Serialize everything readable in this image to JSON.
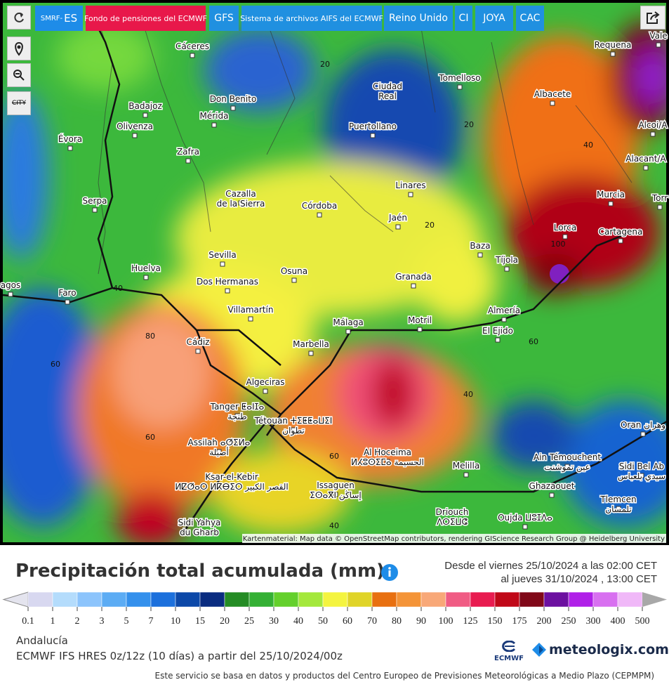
{
  "toolbar": {
    "buttons": [
      {
        "small": "SMRF-",
        "label": "ES"
      },
      {
        "label": "Fondo de pensiones del ECMWF"
      },
      {
        "label": "GFS"
      },
      {
        "label": "Sistema de archivos AIFS del ECMWF"
      },
      {
        "label": "Reino Unido"
      },
      {
        "label": "CI"
      },
      {
        "label": "JOYA"
      },
      {
        "label": "CAC"
      }
    ],
    "city_toggle": "CITY"
  },
  "map": {
    "cities": [
      {
        "name": "Cáceres"
      },
      {
        "name": "Badajoz"
      },
      {
        "name": "Mérida"
      },
      {
        "name": "Don Benito"
      },
      {
        "name": "Olivenza"
      },
      {
        "name": "Évora"
      },
      {
        "name": "Zafra"
      },
      {
        "name": "Ciudad",
        "alt": "Real"
      },
      {
        "name": "Tomelloso"
      },
      {
        "name": "Puertollano"
      },
      {
        "name": "Albacete"
      },
      {
        "name": "Requena"
      },
      {
        "name": "Vale"
      },
      {
        "name": "Alcoi/A"
      },
      {
        "name": "Alacant/A"
      },
      {
        "name": "Murcia"
      },
      {
        "name": "Torr"
      },
      {
        "name": "Cartagena"
      },
      {
        "name": "Lorca"
      },
      {
        "name": "Linares"
      },
      {
        "name": "Jaén"
      },
      {
        "name": "Córdoba"
      },
      {
        "name": "Cazalla",
        "alt": "de la Sierra"
      },
      {
        "name": "Serpa"
      },
      {
        "name": "Huelva"
      },
      {
        "name": "Sevilla"
      },
      {
        "name": "Dos Hermanas"
      },
      {
        "name": "Osuna"
      },
      {
        "name": "Granada"
      },
      {
        "name": "Baza"
      },
      {
        "name": "Tíjola"
      },
      {
        "name": "Almería"
      },
      {
        "name": "El Ejido"
      },
      {
        "name": "Motril"
      },
      {
        "name": "Málaga"
      },
      {
        "name": "Marbella"
      },
      {
        "name": "Villamartín"
      },
      {
        "name": "Faro"
      },
      {
        "name": "agos"
      },
      {
        "name": "Cádiz"
      },
      {
        "name": "Algeciras"
      },
      {
        "name": "Tanger ⵟⴰⵏⵊⴰ",
        "alt": "طنجة"
      },
      {
        "name": "Tétouan ⵜⵉⵟⵟⴰⵡⵉⵏ",
        "alt": "تطوان"
      },
      {
        "name": "Assilah ⴰⵚⵉⵍⴰ",
        "alt": "أصيلة"
      },
      {
        "name": "Al Hoceima",
        "alt": "ⵍⵃⵓⵙⵉⵎⴰ الحسيمة"
      },
      {
        "name": "Ksar-el-Kebir",
        "alt": "ⵍⵇⵚⴰⵔ ⵍⴽⴱⵉⵔ القصر الكبير"
      },
      {
        "name": "Issaguen",
        "alt": "ⵉⵙⴰⴳⵏ إساڭن"
      },
      {
        "name": "Melilla"
      },
      {
        "name": "Driouch",
        "alt": "ⴷⵔⵉⵡⵛ"
      },
      {
        "name": "Oujda ⵡⵓⵊⴷⴰ"
      },
      {
        "name": "Sidi Yahya",
        "alt": "du Gharb"
      },
      {
        "name": "Ain Témouchent",
        "alt": "عين تموشنت"
      },
      {
        "name": "Oran وهران"
      },
      {
        "name": "Sidi Bel Ab",
        "alt": "سيدي بلعباس"
      },
      {
        "name": "Ghazaouet"
      },
      {
        "name": "Tlemcen",
        "alt": "تلمسان"
      }
    ],
    "contours": [
      "20",
      "20",
      "40",
      "20",
      "100",
      "40",
      "80",
      "60",
      "40",
      "60",
      "60",
      "60",
      "40"
    ],
    "attribution": "Kartenmaterial: Map data © OpenStreetMap contributors, rendering GIScience Research Group @ Heidelberg University"
  },
  "legend": {
    "title": "Precipitación total acumulada (mm)",
    "period_from": "Desde el viernes 25/10/2024 a  las 02:00 CET",
    "period_to": "al jueves 31/10/2024 , 13:00 CET",
    "labels": [
      "0.1",
      "1",
      "2",
      "3",
      "5",
      "7",
      "10",
      "15",
      "20",
      "25",
      "30",
      "40",
      "50",
      "60",
      "70",
      "80",
      "90",
      "100",
      "125",
      "150",
      "175",
      "200",
      "250",
      "300",
      "400",
      "500"
    ],
    "colors": [
      "#d8d8f0",
      "#b4dcfc",
      "#8cc4fc",
      "#5cacf4",
      "#3490ec",
      "#1c70dc",
      "#0c48a8",
      "#0a2c80",
      "#248c24",
      "#34b034",
      "#64d02c",
      "#a4e83c",
      "#f4f440",
      "#e0d428",
      "#e87010",
      "#f49438",
      "#f8a878",
      "#f05c84",
      "#e81c50",
      "#c00818",
      "#800818",
      "#6c10a0",
      "#b020e8",
      "#d870f0",
      "#f0b8f8"
    ],
    "arrow_low": "#e4e4ee",
    "arrow_high": "#a8a8a8"
  },
  "info": {
    "region": "Andalucía",
    "model": "ECMWF IFS HRES 0z/12z (10 días) a partir del 25/10/2024/00z",
    "ecmwf": "ECMWF",
    "brand": "meteologix.com",
    "footer": "Este servicio se basa en datos y productos del Centro Europeo de Previsiones Meteorológicas a Medio Plazo (CEPMPM)"
  }
}
